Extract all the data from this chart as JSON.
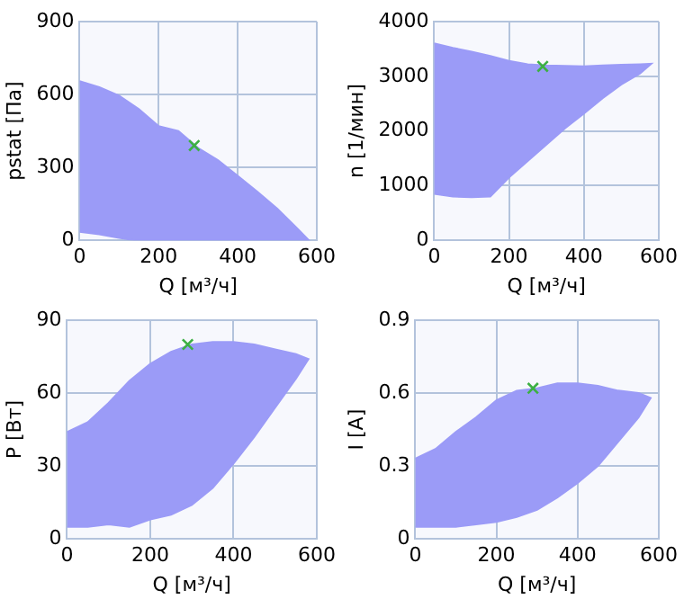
{
  "chart_data": [
    {
      "type": "area",
      "xlabel": "Q [м³/ч]",
      "ylabel": "pstat [Па]",
      "xlim": [
        0,
        600
      ],
      "xticks": [
        0,
        200,
        400,
        600
      ],
      "ylim": [
        0,
        900
      ],
      "yticks": [
        0,
        300,
        600,
        900
      ],
      "grid": true,
      "legend": false,
      "series": [
        {
          "color": "#9b9bf7",
          "x": [
            0,
            50,
            100,
            150,
            200,
            250,
            300,
            350,
            400,
            450,
            500,
            550,
            580,
            140,
            100,
            50,
            0
          ],
          "values": [
            655,
            630,
            595,
            540,
            470,
            450,
            380,
            330,
            265,
            200,
            130,
            50,
            0,
            0,
            10,
            25,
            35
          ]
        },
        {
          "type": "scatter",
          "color": "#3cb043",
          "marker": "cross",
          "x": [
            290
          ],
          "values": [
            390
          ]
        }
      ]
    },
    {
      "type": "area",
      "xlabel": "Q [м³/ч]",
      "ylabel": "n [1/мин]",
      "xlim": [
        0,
        600
      ],
      "xticks": [
        0,
        200,
        400,
        600
      ],
      "ylim": [
        0,
        4000
      ],
      "yticks": [
        0,
        1000,
        2000,
        3000,
        4000
      ],
      "grid": true,
      "legend": false,
      "series": [
        {
          "color": "#9b9bf7",
          "x": [
            0,
            50,
            100,
            150,
            200,
            250,
            300,
            350,
            400,
            450,
            500,
            550,
            580,
            550,
            500,
            450,
            400,
            350,
            300,
            250,
            200,
            150,
            100,
            50,
            0
          ],
          "values": [
            3600,
            3520,
            3450,
            3370,
            3280,
            3220,
            3200,
            3190,
            3180,
            3200,
            3210,
            3220,
            3230,
            3050,
            2850,
            2600,
            2320,
            2050,
            1750,
            1450,
            1150,
            800,
            790,
            800,
            850
          ]
        },
        {
          "type": "scatter",
          "color": "#3cb043",
          "marker": "cross",
          "x": [
            290
          ],
          "values": [
            3180
          ]
        }
      ]
    },
    {
      "type": "area",
      "xlabel": "Q [м³/ч]",
      "ylabel": "P [Вт]",
      "xlim": [
        0,
        600
      ],
      "xticks": [
        0,
        200,
        400,
        600
      ],
      "ylim": [
        0,
        90
      ],
      "yticks": [
        0,
        30,
        60,
        90
      ],
      "grid": true,
      "legend": false,
      "series": [
        {
          "color": "#9b9bf7",
          "x": [
            0,
            50,
            100,
            150,
            200,
            250,
            300,
            350,
            400,
            450,
            500,
            550,
            580,
            550,
            500,
            450,
            400,
            350,
            300,
            250,
            200,
            150,
            100,
            50,
            0
          ],
          "values": [
            44,
            48,
            56,
            65,
            72,
            77,
            80,
            81,
            81,
            80,
            78,
            76,
            74,
            66,
            54,
            42,
            31,
            21,
            14,
            10,
            8,
            5,
            6,
            5,
            5
          ]
        },
        {
          "type": "scatter",
          "color": "#3cb043",
          "marker": "cross",
          "x": [
            290
          ],
          "values": [
            80
          ]
        }
      ]
    },
    {
      "type": "area",
      "xlabel": "Q [м³/ч]",
      "ylabel": "I [A]",
      "xlim": [
        0,
        600
      ],
      "xticks": [
        0,
        200,
        400,
        600
      ],
      "ylim": [
        0,
        0.9
      ],
      "yticks": [
        0,
        0.3,
        0.6,
        0.9
      ],
      "grid": true,
      "legend": false,
      "series": [
        {
          "color": "#9b9bf7",
          "x": [
            0,
            50,
            100,
            150,
            200,
            250,
            300,
            350,
            400,
            450,
            500,
            550,
            580,
            550,
            500,
            450,
            400,
            350,
            300,
            250,
            200,
            150,
            100,
            50,
            0
          ],
          "values": [
            0.33,
            0.37,
            0.44,
            0.5,
            0.57,
            0.61,
            0.62,
            0.64,
            0.64,
            0.63,
            0.61,
            0.6,
            0.58,
            0.5,
            0.4,
            0.3,
            0.23,
            0.17,
            0.12,
            0.09,
            0.07,
            0.06,
            0.05,
            0.05,
            0.05
          ]
        },
        {
          "type": "scatter",
          "color": "#3cb043",
          "marker": "cross",
          "x": [
            290
          ],
          "values": [
            0.62
          ]
        }
      ]
    }
  ]
}
